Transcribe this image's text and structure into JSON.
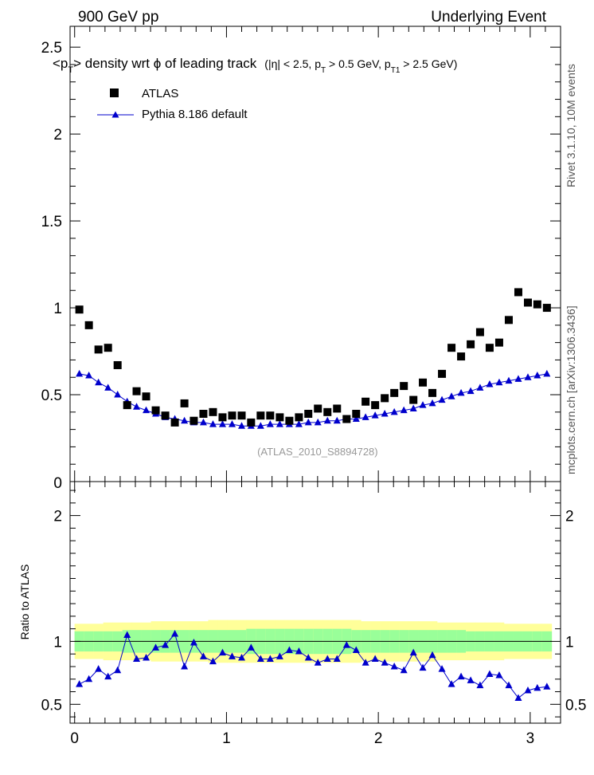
{
  "header": {
    "left": "900 GeV pp",
    "right": "Underlying Event"
  },
  "title": {
    "main_pre": "<p",
    "main_sub": "T",
    "main_post": "> density wrt  ϕ of leading track",
    "cuts_pre": "(|η| < 2.5, p",
    "cuts_sub1": "T",
    "cuts_mid": " > 0.5 GeV, p",
    "cuts_sub2": "T1",
    "cuts_post": " > 2.5 GeV)"
  },
  "side_labels": {
    "rivet": "Rivet 3.1.10,  10M events",
    "mcplots": "mcplots.cern.ch [arXiv:1306.3436]"
  },
  "watermark": "(ATLAS_2010_S8894728)",
  "colors": {
    "data": "#000000",
    "mc": "#0000cc",
    "band_inner": "#99ff99",
    "band_outer": "#ffff99"
  },
  "chart_data": [
    {
      "type": "scatter",
      "xlim": [
        -0.03,
        3.2
      ],
      "ylim": [
        0,
        2.62
      ],
      "x_ticks": [
        0,
        1,
        2,
        3
      ],
      "y_ticks": [
        0.5,
        1,
        1.5,
        2,
        2.5
      ],
      "y_tick_labels": [
        "0.5",
        "1",
        "1.5",
        "2",
        "2.5"
      ],
      "y_zero_label": "0",
      "legend": {
        "position": "top-left",
        "data_label": "ATLAS",
        "mc_label": "Pythia 8.186 default"
      },
      "x": [
        0.031,
        0.094,
        0.157,
        0.22,
        0.283,
        0.346,
        0.408,
        0.471,
        0.534,
        0.597,
        0.66,
        0.723,
        0.785,
        0.848,
        0.911,
        0.974,
        1.037,
        1.1,
        1.162,
        1.225,
        1.288,
        1.351,
        1.414,
        1.477,
        1.539,
        1.602,
        1.665,
        1.728,
        1.791,
        1.854,
        1.916,
        1.979,
        2.042,
        2.105,
        2.168,
        2.231,
        2.293,
        2.356,
        2.419,
        2.482,
        2.545,
        2.608,
        2.67,
        2.733,
        2.796,
        2.859,
        2.922,
        2.985,
        3.047,
        3.11
      ],
      "series": [
        {
          "name": "ATLAS",
          "values": [
            0.99,
            0.9,
            0.76,
            0.77,
            0.67,
            0.44,
            0.52,
            0.49,
            0.41,
            0.38,
            0.34,
            0.45,
            0.35,
            0.39,
            0.4,
            0.37,
            0.38,
            0.38,
            0.34,
            0.38,
            0.38,
            0.37,
            0.35,
            0.37,
            0.39,
            0.42,
            0.4,
            0.42,
            0.36,
            0.39,
            0.46,
            0.44,
            0.48,
            0.51,
            0.55,
            0.47,
            0.57,
            0.51,
            0.62,
            0.77,
            0.72,
            0.79,
            0.86,
            0.77,
            0.8,
            0.93,
            1.09,
            1.03,
            1.02,
            1.0
          ]
        },
        {
          "name": "Pythia 8.186 default",
          "values": [
            0.62,
            0.61,
            0.57,
            0.54,
            0.5,
            0.46,
            0.43,
            0.41,
            0.39,
            0.37,
            0.36,
            0.35,
            0.34,
            0.34,
            0.33,
            0.33,
            0.33,
            0.32,
            0.32,
            0.32,
            0.33,
            0.33,
            0.33,
            0.33,
            0.34,
            0.34,
            0.35,
            0.35,
            0.36,
            0.36,
            0.37,
            0.38,
            0.39,
            0.4,
            0.41,
            0.42,
            0.44,
            0.45,
            0.47,
            0.49,
            0.51,
            0.52,
            0.54,
            0.56,
            0.57,
            0.58,
            0.59,
            0.6,
            0.61,
            0.62
          ]
        }
      ]
    },
    {
      "type": "line",
      "ylabel": "Ratio to ATLAS",
      "xlim": [
        -0.03,
        3.2
      ],
      "ylim": [
        0.35,
        2.27
      ],
      "x_ticks": [
        0,
        1,
        2,
        3
      ],
      "x_tick_labels": [
        "0",
        "1",
        "2",
        "3"
      ],
      "y_ticks": [
        0.5,
        1,
        2
      ],
      "y_tick_labels": [
        "0.5",
        "1",
        "2"
      ],
      "band_inner": [
        0.08,
        0.08,
        0.08,
        0.08,
        0.08,
        0.09,
        0.09,
        0.09,
        0.09,
        0.09,
        0.09,
        0.09,
        0.09,
        0.09,
        0.09,
        0.09,
        0.09,
        0.09,
        0.1,
        0.1,
        0.1,
        0.1,
        0.1,
        0.1,
        0.1,
        0.1,
        0.1,
        0.1,
        0.1,
        0.09,
        0.09,
        0.09,
        0.09,
        0.09,
        0.09,
        0.09,
        0.09,
        0.09,
        0.09,
        0.09,
        0.09,
        0.08,
        0.08,
        0.08,
        0.08,
        0.08,
        0.08,
        0.08,
        0.08,
        0.08
      ],
      "band_outer": [
        0.14,
        0.14,
        0.14,
        0.15,
        0.15,
        0.15,
        0.15,
        0.15,
        0.16,
        0.16,
        0.16,
        0.16,
        0.16,
        0.16,
        0.17,
        0.17,
        0.17,
        0.17,
        0.17,
        0.17,
        0.17,
        0.17,
        0.17,
        0.17,
        0.17,
        0.17,
        0.17,
        0.17,
        0.17,
        0.17,
        0.16,
        0.16,
        0.16,
        0.16,
        0.16,
        0.16,
        0.16,
        0.16,
        0.15,
        0.15,
        0.15,
        0.15,
        0.15,
        0.15,
        0.15,
        0.14,
        0.14,
        0.14,
        0.14,
        0.14
      ],
      "series": [
        {
          "name": "Pythia 8.186 default",
          "values": [
            0.66,
            0.7,
            0.78,
            0.72,
            0.77,
            1.05,
            0.86,
            0.87,
            0.95,
            0.97,
            1.06,
            0.8,
            0.99,
            0.88,
            0.84,
            0.91,
            0.88,
            0.87,
            0.95,
            0.86,
            0.86,
            0.88,
            0.93,
            0.92,
            0.87,
            0.83,
            0.86,
            0.86,
            0.97,
            0.93,
            0.83,
            0.86,
            0.83,
            0.8,
            0.77,
            0.91,
            0.79,
            0.89,
            0.78,
            0.66,
            0.72,
            0.69,
            0.65,
            0.74,
            0.73,
            0.65,
            0.55,
            0.61,
            0.63,
            0.64
          ]
        }
      ]
    }
  ]
}
